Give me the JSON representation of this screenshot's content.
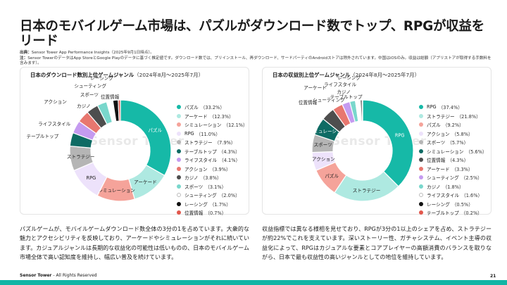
{
  "title": "日本のモバイルゲーム市場は、パズルがダウンロード数でトップ、RPGが収益をリード",
  "source": {
    "label": "出典：",
    "text": "Sensor Tower App Performance Insights（2025年9月1日時点）。",
    "note_label": "注：",
    "note": "Sensor TowerのデータはApp StoreとGoogle Playのデータに基づく推定値です。ダウンロード数では、プリインストール、再ダウンロード、サードパーティのAndroidストアは除外されています。中国はiOSのみ。収益は総額（アプリストアが取得する手数料を含みます）。"
  },
  "watermark": "Sensor Tower",
  "left_panel": {
    "title": "日本のダウンロード数別上位ゲームジャンル",
    "period": "（2024年8月〜2025年7月）"
  },
  "right_panel": {
    "title": "日本の収益別上位ゲームジャンル",
    "period": "（2024年8月〜2025年7月）"
  },
  "chart_data": [
    {
      "type": "pie",
      "title": "日本のダウンロード数別上位ゲームジャンル（2024年8月〜2025年7月）",
      "categories": [
        "パズル",
        "アーケード",
        "シミュレーション",
        "RPG",
        "ストラテジー",
        "テーブルトップ",
        "ライフスタイル",
        "アクション",
        "カジノ",
        "スポーツ",
        "シューティング",
        "レーシング",
        "位置情報"
      ],
      "values": [
        33.2,
        12.3,
        12.1,
        11.0,
        7.9,
        4.3,
        4.1,
        3.9,
        3.8,
        3.1,
        2.0,
        1.7,
        0.7
      ],
      "labels": [
        "（33.2%）",
        "（12.3%）",
        "（12.1%）",
        "（11.0%）",
        "（7.9%）",
        "（4.3%）",
        "（4.1%）",
        "（3.9%）",
        "（3.8%）",
        "（3.1%）",
        "（2.0%）",
        "（1.7%）",
        "（0.7%）"
      ],
      "colors": [
        "#16b9a7",
        "#aee9e1",
        "#f5a39a",
        "#ede2fb",
        "#b5b5b5",
        "#0e6b64",
        "#c59bf0",
        "#e8776f",
        "#4e4e4e",
        "#79d7cc",
        "#ffffff",
        "#111111",
        "#e2574c"
      ],
      "legend": "right"
    },
    {
      "type": "pie",
      "title": "日本の収益別上位ゲームジャンル（2024年8月〜2025年7月）",
      "categories": [
        "RPG",
        "ストラテジー",
        "パズル",
        "アクション",
        "スポーツ",
        "シミュレーション",
        "位置情報",
        "アーケード",
        "シューティング",
        "カジノ",
        "ライフスタイル",
        "レーシング",
        "テーブルトップ"
      ],
      "values": [
        37.4,
        21.8,
        9.2,
        5.8,
        5.7,
        5.6,
        4.3,
        3.3,
        2.5,
        1.8,
        1.6,
        0.5,
        0.2
      ],
      "labels": [
        "（37.4%）",
        "（21.8%）",
        "（9.2%）",
        "（5.8%）",
        "（5.7%）",
        "（5.6%）",
        "（4.3%）",
        "（3.3%）",
        "（2.5%）",
        "（1.8%）",
        "（1.6%）",
        "（0.5%）",
        "（0.2%）"
      ],
      "colors": [
        "#16b9a7",
        "#aee9e1",
        "#f5a39a",
        "#ede2fb",
        "#b5b5b5",
        "#0e6b64",
        "#4e4e4e",
        "#e8776f",
        "#c59bf0",
        "#79d7cc",
        "#ffffff",
        "#111111",
        "#e2574c"
      ],
      "legend": "right"
    }
  ],
  "left_text": "パズルゲームが、モバイルゲームダウンロード数全体の3分の1を占めています。大衆的な魅力とアクセシビリティを反映しており、アーケードやシミュレーションがそれに続いています。カジュアルジャンルは長期的な収益化の可能性は低いものの、日本のモバイルゲーム市場全体で高い認知度を維持し、幅広い普及を続けています。",
  "right_text": "収益指標では異なる様相を見せており、RPGが3分の1以上のシェアを占め、ストラテジーが約22%でこれを支えています。深いストーリー性、ガチャシステム、イベント主導の収益化によって、RPGはカジュアルな要素とコアプレイヤーの高額消費のバランスを取りながら、日本で最も収益性の高いジャンルとしての地位を維持しています。",
  "footer": {
    "brand": "Sensor Tower",
    "rights": "- All Rights Reserved",
    "page": "21"
  },
  "colors": {
    "accent": "#12b5a5"
  }
}
